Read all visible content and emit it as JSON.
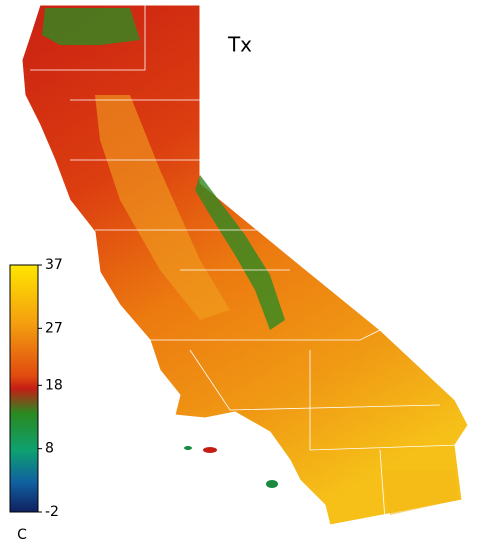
{
  "title": "Tx",
  "colorbar": {
    "unit": "C",
    "lim": [
      -2,
      37
    ],
    "ticks": [
      37,
      27,
      18,
      8,
      -2
    ]
  }
}
